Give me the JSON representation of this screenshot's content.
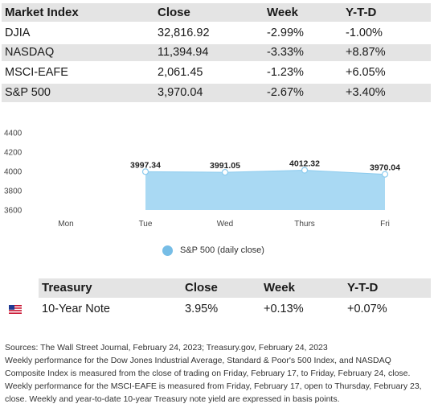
{
  "market_table": {
    "headers": [
      "Market Index",
      "Close",
      "Week",
      "Y-T-D"
    ],
    "rows": [
      [
        "DJIA",
        "32,816.92",
        "-2.99%",
        "-1.00%"
      ],
      [
        "NASDAQ",
        "11,394.94",
        "-3.33%",
        "+8.87%"
      ],
      [
        "MSCI-EAFE",
        "2,061.45",
        "-1.23%",
        "+6.05%"
      ],
      [
        "S&P 500",
        "3,970.04",
        "-2.67%",
        "+3.40%"
      ]
    ]
  },
  "chart_data": {
    "type": "area",
    "categories": [
      "Mon",
      "Tue",
      "Wed",
      "Thurs",
      "Fri"
    ],
    "series": [
      {
        "name": "S&P 500 (daily close)",
        "values": [
          null,
          3997.34,
          3991.05,
          4012.32,
          3970.04
        ],
        "labels": [
          "",
          "3997.34",
          "3991.05",
          "4012.32",
          "3970.04"
        ],
        "color": "#a9d9f3",
        "marker_color": "#76bde6"
      }
    ],
    "ylim": [
      3600,
      4400
    ],
    "yticks": [
      "3600",
      "3800",
      "4000",
      "4200",
      "4400"
    ],
    "grid": false,
    "legend": "bottom-center",
    "title": "",
    "xlabel": "",
    "ylabel": ""
  },
  "treasury_table": {
    "headers": [
      "Treasury",
      "Close",
      "Week",
      "Y-T-D"
    ],
    "rows": [
      {
        "icon": "us-flag-icon",
        "label": "10-Year Note",
        "close": "3.95%",
        "week": "+0.13%",
        "ytd": "+0.07%"
      }
    ]
  },
  "notes": [
    "Sources: The Wall Street Journal, February 24, 2023; Treasury.gov, February 24, 2023",
    "Weekly performance for the Dow Jones Industrial Average, Standard & Poor's 500 Index, and NASDAQ Composite Index is measured from the close of trading on Friday, February 17, to Friday, February 24, close.",
    "Weekly performance for the MSCI-EAFE is measured from Friday, February 17, open to Thursday, February 23, close. Weekly and year-to-date 10-year Treasury note yield are expressed in basis points."
  ]
}
